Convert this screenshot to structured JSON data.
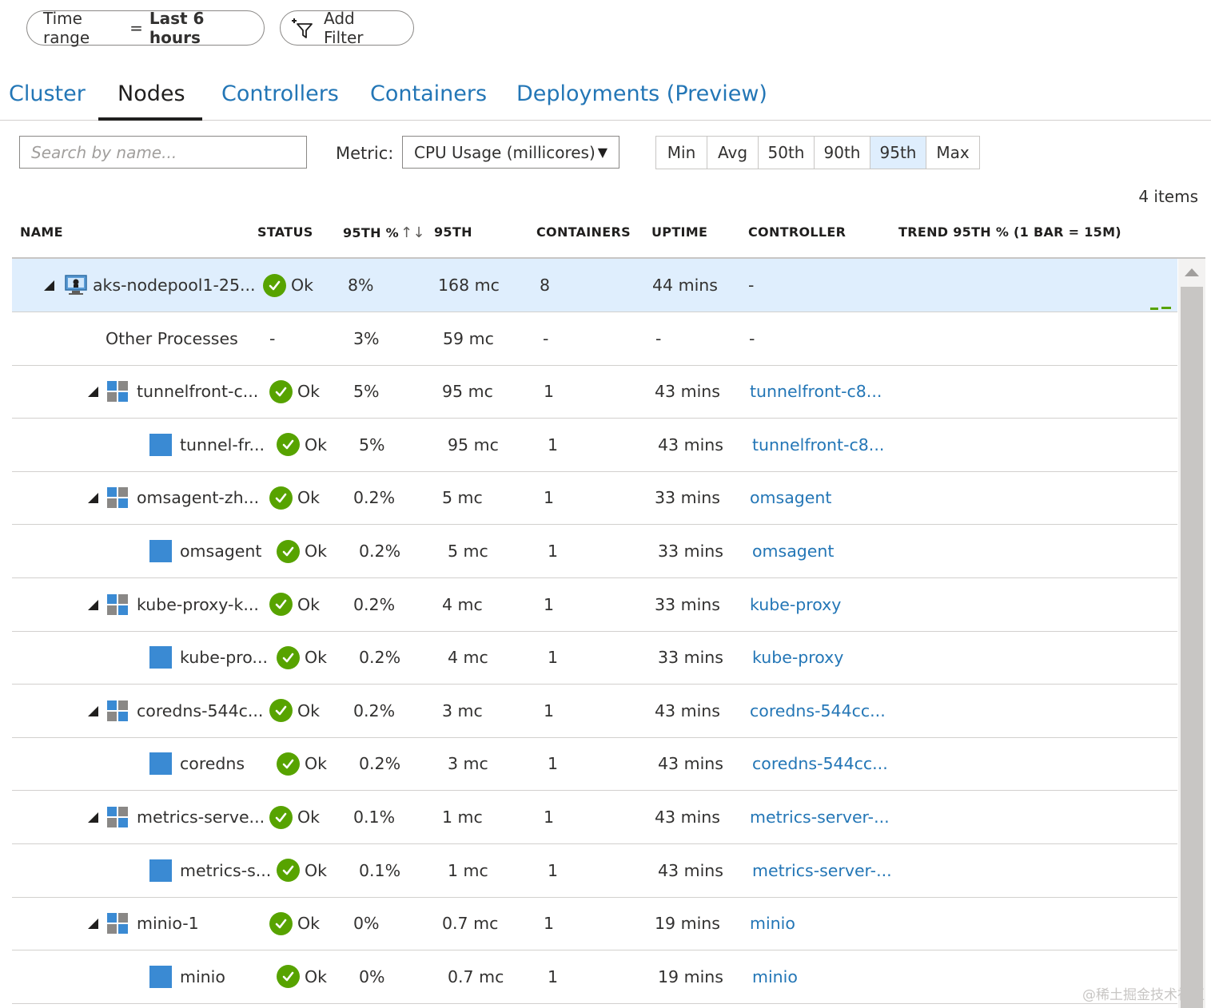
{
  "filters": {
    "time_range_label": "Time range",
    "time_range_eq": "=",
    "time_range_value": "Last 6 hours",
    "add_filter": "Add Filter"
  },
  "tabs": [
    {
      "label": "Cluster",
      "active": false
    },
    {
      "label": "Nodes",
      "active": true
    },
    {
      "label": "Controllers",
      "active": false
    },
    {
      "label": "Containers",
      "active": false
    },
    {
      "label": "Deployments (Preview)",
      "active": false
    }
  ],
  "search": {
    "placeholder": "Search by name..."
  },
  "metric": {
    "label": "Metric:",
    "value": "CPU Usage (millicores)"
  },
  "percentiles": {
    "options": [
      "Min",
      "Avg",
      "50th",
      "90th",
      "95th",
      "Max"
    ],
    "selected": "95th"
  },
  "items_count": "4 items",
  "columns": {
    "name": "NAME",
    "status": "STATUS",
    "p95_pct": "95TH %",
    "p95": "95TH",
    "containers": "CONTAINERS",
    "uptime": "UPTIME",
    "controller": "CONTROLLER",
    "trend": "TREND 95TH % (1 BAR = 15M)"
  },
  "rows": [
    {
      "type": "node",
      "name": "aks-nodepool1-25...",
      "status": "Ok",
      "pct": "8%",
      "val": "168 mc",
      "containers": "8",
      "uptime": "44 mins",
      "controller": "-"
    },
    {
      "type": "other",
      "name": "Other Processes",
      "status": "-",
      "pct": "3%",
      "val": "59 mc",
      "containers": "-",
      "uptime": "-",
      "controller": "-"
    },
    {
      "type": "pod",
      "name": "tunnelfront-c...",
      "status": "Ok",
      "pct": "5%",
      "val": "95 mc",
      "containers": "1",
      "uptime": "43 mins",
      "controller": "tunnelfront-c8..."
    },
    {
      "type": "container",
      "name": "tunnel-fr...",
      "status": "Ok",
      "pct": "5%",
      "val": "95 mc",
      "containers": "1",
      "uptime": "43 mins",
      "controller": "tunnelfront-c8..."
    },
    {
      "type": "pod",
      "name": "omsagent-zh...",
      "status": "Ok",
      "pct": "0.2%",
      "val": "5 mc",
      "containers": "1",
      "uptime": "33 mins",
      "controller": "omsagent"
    },
    {
      "type": "container",
      "name": "omsagent",
      "status": "Ok",
      "pct": "0.2%",
      "val": "5 mc",
      "containers": "1",
      "uptime": "33 mins",
      "controller": "omsagent"
    },
    {
      "type": "pod",
      "name": "kube-proxy-k...",
      "status": "Ok",
      "pct": "0.2%",
      "val": "4 mc",
      "containers": "1",
      "uptime": "33 mins",
      "controller": "kube-proxy"
    },
    {
      "type": "container",
      "name": "kube-pro...",
      "status": "Ok",
      "pct": "0.2%",
      "val": "4 mc",
      "containers": "1",
      "uptime": "33 mins",
      "controller": "kube-proxy"
    },
    {
      "type": "pod",
      "name": "coredns-544c...",
      "status": "Ok",
      "pct": "0.2%",
      "val": "3 mc",
      "containers": "1",
      "uptime": "43 mins",
      "controller": "coredns-544cc..."
    },
    {
      "type": "container",
      "name": "coredns",
      "status": "Ok",
      "pct": "0.2%",
      "val": "3 mc",
      "containers": "1",
      "uptime": "43 mins",
      "controller": "coredns-544cc..."
    },
    {
      "type": "pod",
      "name": "metrics-serve...",
      "status": "Ok",
      "pct": "0.1%",
      "val": "1 mc",
      "containers": "1",
      "uptime": "43 mins",
      "controller": "metrics-server-..."
    },
    {
      "type": "container",
      "name": "metrics-s...",
      "status": "Ok",
      "pct": "0.1%",
      "val": "1 mc",
      "containers": "1",
      "uptime": "43 mins",
      "controller": "metrics-server-..."
    },
    {
      "type": "pod",
      "name": "minio-1",
      "status": "Ok",
      "pct": "0%",
      "val": "0.7 mc",
      "containers": "1",
      "uptime": "19 mins",
      "controller": "minio"
    },
    {
      "type": "container",
      "name": "minio",
      "status": "Ok",
      "pct": "0%",
      "val": "0.7 mc",
      "containers": "1",
      "uptime": "19 mins",
      "controller": "minio"
    }
  ],
  "watermark": "@稀土掘金技术社区",
  "colors": {
    "link": "#2376b6",
    "ok": "#57a300",
    "selected_row": "#dfeefd",
    "container": "#3a8ad3"
  }
}
